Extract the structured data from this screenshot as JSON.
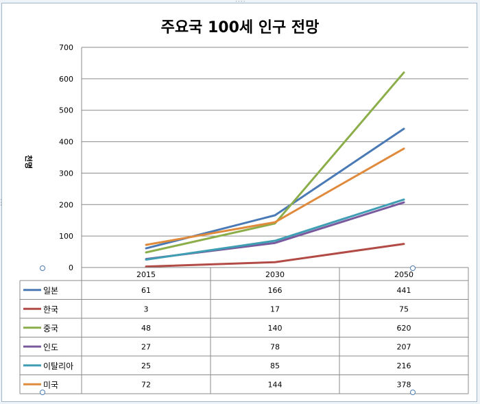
{
  "chart_data": {
    "type": "line",
    "title": "주요국 100세 인구 전망",
    "ylabel": "천명",
    "xlabel": "",
    "categories": [
      "2015",
      "2030",
      "2050"
    ],
    "ylim": [
      0,
      700
    ],
    "yticks": [
      0,
      100,
      200,
      300,
      400,
      500,
      600,
      700
    ],
    "grid": true,
    "legend": "data-table-below",
    "series": [
      {
        "name": "일본",
        "color": "#4a7ab5",
        "values": [
          61,
          166,
          441
        ]
      },
      {
        "name": "한국",
        "color": "#b24a45",
        "values": [
          3,
          17,
          75
        ]
      },
      {
        "name": "중국",
        "color": "#8cae4a",
        "values": [
          48,
          140,
          620
        ]
      },
      {
        "name": "인도",
        "color": "#7a5a9e",
        "values": [
          27,
          78,
          207
        ]
      },
      {
        "name": "이탈리아",
        "color": "#3f9eb3",
        "values": [
          25,
          85,
          216
        ]
      },
      {
        "name": "미국",
        "color": "#e08a3c",
        "values": [
          72,
          144,
          378
        ]
      }
    ]
  }
}
